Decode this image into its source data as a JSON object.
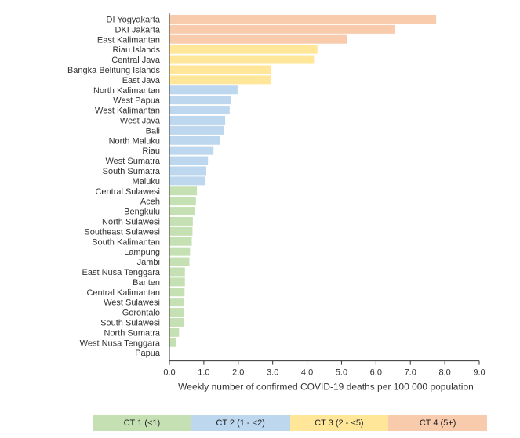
{
  "chart_data": {
    "type": "bar",
    "orientation": "horizontal",
    "xlabel": "Weekly number of confirmed COVID-19 deaths per 100 000 population",
    "xlim": [
      0,
      9
    ],
    "xticks": [
      "0.0",
      "1.0",
      "2.0",
      "3.0",
      "4.0",
      "5.0",
      "6.0",
      "7.0",
      "8.0",
      "9.0"
    ],
    "grid": false,
    "legend_placement": "bottom",
    "categories": [
      "DI Yogyakarta",
      "DKI Jakarta",
      "East Kalimantan",
      "Riau Islands",
      "Central Java",
      "Bangka Belitung Islands",
      "East Java",
      "North Kalimantan",
      "West Papua",
      "West Kalimantan",
      "West Java",
      "Bali",
      "North Maluku",
      "Riau",
      "West Sumatra",
      "South Sumatra",
      "Maluku",
      "Central Sulawesi",
      "Aceh",
      "Bengkulu",
      "North Sulawesi",
      "Southeast Sulawesi",
      "South Kalimantan",
      "Lampung",
      "Jambi",
      "East Nusa Tenggara",
      "Banten",
      "Central Kalimantan",
      "West Sulawesi",
      "Gorontalo",
      "South Sulawesi",
      "North Sumatra",
      "West Nusa Tenggara",
      "Papua"
    ],
    "values": [
      7.75,
      6.55,
      5.15,
      4.3,
      4.2,
      2.95,
      2.95,
      1.98,
      1.78,
      1.75,
      1.62,
      1.58,
      1.48,
      1.28,
      1.12,
      1.07,
      1.05,
      0.8,
      0.77,
      0.75,
      0.68,
      0.67,
      0.65,
      0.6,
      0.58,
      0.45,
      0.45,
      0.44,
      0.43,
      0.43,
      0.42,
      0.28,
      0.2,
      0.0
    ],
    "legend": [
      {
        "label": "CT 1 (<1)",
        "color": "#c5e0b3"
      },
      {
        "label": "CT 2 (1 - <2)",
        "color": "#bdd7ee"
      },
      {
        "label": "CT 3 (2 - <5)",
        "color": "#ffe699"
      },
      {
        "label": "CT 4 (5+)",
        "color": "#f8cbad"
      }
    ],
    "thresholds": [
      1,
      2,
      5
    ]
  }
}
